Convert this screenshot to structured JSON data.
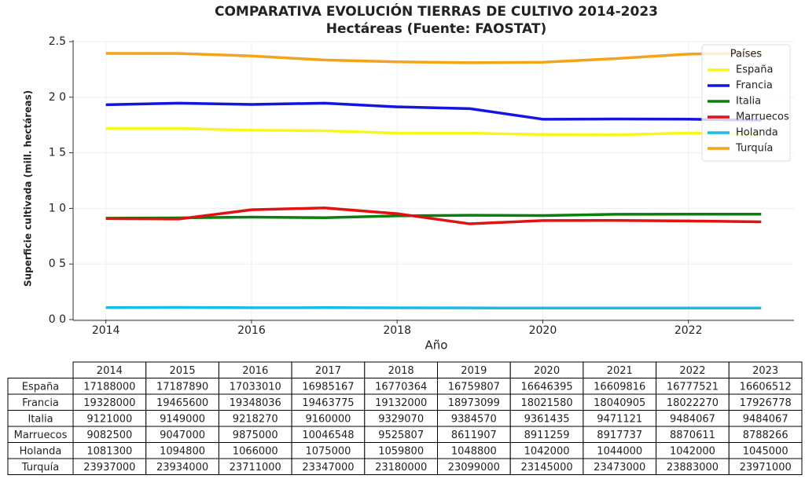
{
  "chart_data": {
    "type": "line",
    "title": "COMPARATIVA EVOLUCIÓN TIERRAS DE CULTIVO 2014-2023",
    "subtitle": "Hectáreas (Fuente: FAOSTAT)",
    "x_label": "Año",
    "y_label": "Superficie cultivada (mill. hectáreas)",
    "x": [
      2014,
      2015,
      2016,
      2017,
      2018,
      2019,
      2020,
      2021,
      2022,
      2023
    ],
    "xlim": [
      2013.55,
      2023.45
    ],
    "xticks": [
      2014,
      2016,
      2018,
      2020,
      2022
    ],
    "ylim": [
      0,
      2.5
    ],
    "yticks": [
      {
        "value": 0,
        "label": "0 0"
      },
      {
        "value": 0.5,
        "label": "0 5"
      },
      {
        "value": 1,
        "label": "1 0"
      },
      {
        "value": 1.5,
        "label": "1 5"
      },
      {
        "value": 2,
        "label": "2 0"
      },
      2.5
    ],
    "grid": true,
    "legend_title": "Países",
    "legend_position": "upper right",
    "series": [
      {
        "name": "España",
        "color": "#f7f71a",
        "values": [
          1.7188,
          1.718789,
          1.703301,
          1.6985167,
          1.6770364,
          1.6759807,
          1.6646395,
          1.6609816,
          1.6777521,
          1.6606512
        ]
      },
      {
        "name": "Francia",
        "color": "#1515dd",
        "values": [
          1.9328,
          1.94656,
          1.9348036,
          1.9463775,
          1.9132,
          1.8973099,
          1.802158,
          1.8040905,
          1.802227,
          1.7926778
        ]
      },
      {
        "name": "Italia",
        "color": "#0b7f0b",
        "values": [
          0.9121,
          0.9149,
          0.921827,
          0.916,
          0.932907,
          0.938457,
          0.9361435,
          0.9471121,
          0.9484067,
          0.9484067
        ]
      },
      {
        "name": "Marruecos",
        "color": "#e01212",
        "values": [
          0.90825,
          0.9047,
          0.9875,
          1.0046548,
          0.9525807,
          0.8611907,
          0.8911259,
          0.8917737,
          0.8870611,
          0.8788266
        ]
      },
      {
        "name": "Holanda",
        "color": "#18bce8",
        "values": [
          0.10813,
          0.10948,
          0.1066,
          0.1075,
          0.10598,
          0.10488,
          0.1042,
          0.1044,
          0.1042,
          0.1045
        ]
      },
      {
        "name": "Turquía",
        "color": "#f5a31c",
        "values": [
          2.3937,
          2.3934,
          2.3711,
          2.3347,
          2.318,
          2.3099,
          2.3145,
          2.3473,
          2.3883,
          2.3971
        ]
      }
    ]
  },
  "table": {
    "columns": [
      "2014",
      "2015",
      "2016",
      "2017",
      "2018",
      "2019",
      "2020",
      "2021",
      "2022",
      "2023"
    ],
    "rows": [
      [
        "España",
        "17188000",
        "17187890",
        "17033010",
        "16985167",
        "16770364",
        "16759807",
        "16646395",
        "16609816",
        "16777521",
        "16606512"
      ],
      [
        "Francia",
        "19328000",
        "19465600",
        "19348036",
        "19463775",
        "19132000",
        "18973099",
        "18021580",
        "18040905",
        "18022270",
        "17926778"
      ],
      [
        "Italia",
        "9121000",
        "9149000",
        "9218270",
        "9160000",
        "9329070",
        "9384570",
        "9361435",
        "9471121",
        "9484067",
        "9484067"
      ],
      [
        "Marruecos",
        "9082500",
        "9047000",
        "9875000",
        "10046548",
        "9525807",
        "8611907",
        "8911259",
        "8917737",
        "8870611",
        "8788266"
      ],
      [
        "Holanda",
        "1081300",
        "1094800",
        "1066000",
        "1075000",
        "1059800",
        "1048800",
        "1042000",
        "1044000",
        "1042000",
        "1045000"
      ],
      [
        "Turquía",
        "23937000",
        "23934000",
        "23711000",
        "23347000",
        "23180000",
        "23099000",
        "23145000",
        "23473000",
        "23883000",
        "23971000"
      ]
    ]
  }
}
